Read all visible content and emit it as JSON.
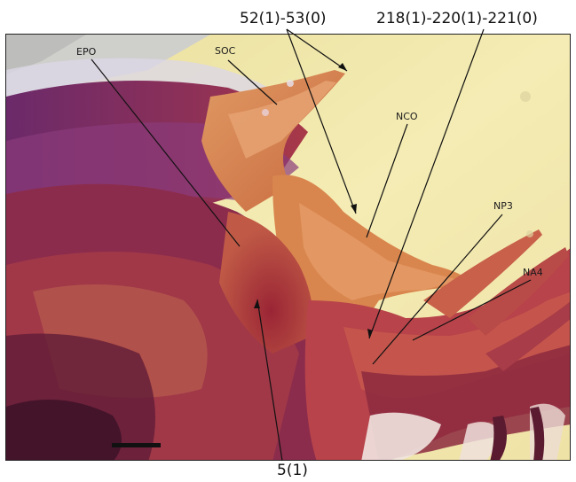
{
  "labels": {
    "top_left": "52(1)-53(0)",
    "top_right": "218(1)-220(1)-221(0)",
    "bottom": "5(1)",
    "epo": "EPO",
    "soc": "SOC",
    "nco": "NCO",
    "np3": "NP3",
    "na4": "NA4"
  },
  "colors": {
    "background_pale": "#f2e7a8",
    "tissue_orange": "#d9864e",
    "tissue_red": "#a8303a",
    "tissue_purple": "#7a2a6a",
    "tissue_dark": "#4a1a2e"
  }
}
